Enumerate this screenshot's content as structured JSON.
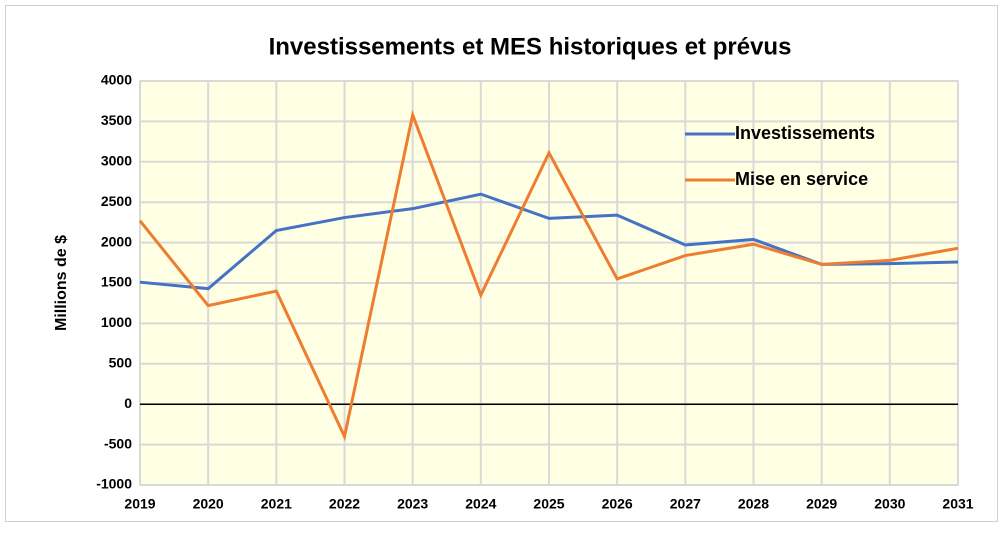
{
  "chart_data": {
    "type": "line",
    "title": "Investissements et MES historiques et prévus",
    "y_label": "Millions de $",
    "categories": [
      "2019",
      "2020",
      "2021",
      "2022",
      "2023",
      "2024",
      "2025",
      "2026",
      "2027",
      "2028",
      "2029",
      "2030",
      "2031"
    ],
    "series": [
      {
        "name": "Investissements",
        "color": "#4472c4",
        "values": [
          1510,
          1430,
          2150,
          2310,
          2420,
          2600,
          2300,
          2340,
          1970,
          2040,
          1730,
          1740,
          1760
        ]
      },
      {
        "name": "Mise en service",
        "color": "#ed7d31",
        "values": [
          2270,
          1220,
          1400,
          -400,
          3580,
          1350,
          3110,
          1550,
          1840,
          1980,
          1730,
          1780,
          1930
        ]
      }
    ],
    "ylim": [
      -1000,
      4000
    ],
    "yticks": [
      -1000,
      -500,
      0,
      500,
      1000,
      1500,
      2000,
      2500,
      3000,
      3500,
      4000
    ],
    "grid": true,
    "legend": "upper right"
  }
}
